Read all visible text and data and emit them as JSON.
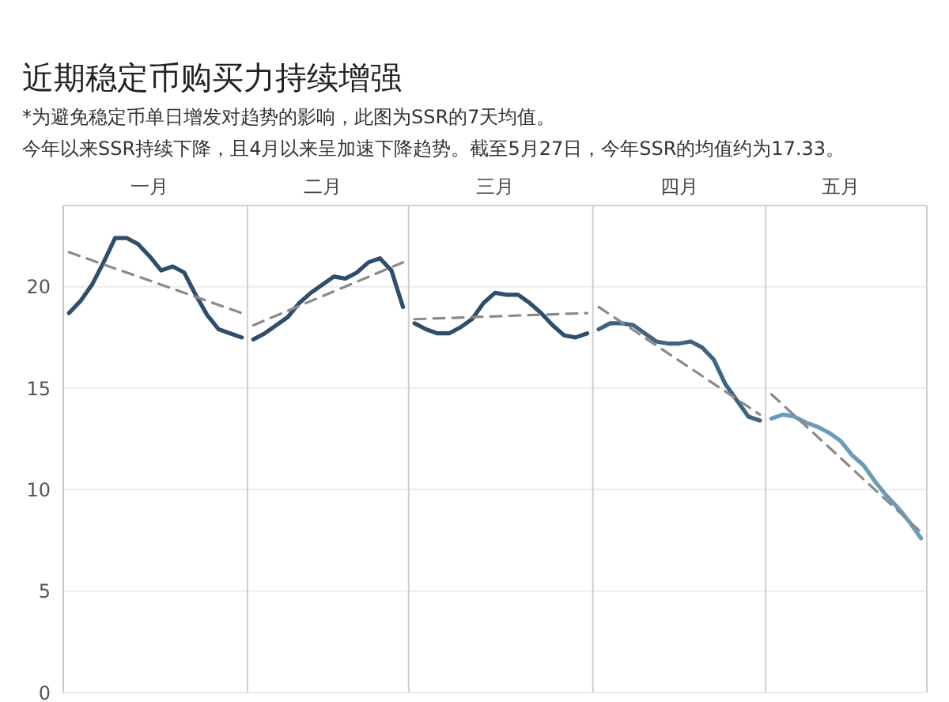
{
  "chart_data": {
    "type": "line",
    "title": "近期稳定币购买力持续增强",
    "subtitle": "*为避免稳定币单日增发对趋势的影响，此图为SSR的7天均值。",
    "annotations": [
      "今年以来SSR持续下降，且4月以来呈加速下降趋势。截至5月27日，今年SSR的均值约为17.33。"
    ],
    "ylim": [
      0,
      24
    ],
    "yticks": [
      0,
      5,
      10,
      15,
      20
    ],
    "grid": "y",
    "line_style": "solid",
    "categories": [
      null,
      null,
      null,
      null,
      null,
      null,
      null,
      "一月",
      null,
      null,
      null,
      null,
      null,
      null,
      null,
      null,
      null,
      null,
      null,
      null,
      null,
      null,
      "二月",
      null,
      null,
      null,
      null,
      null,
      null,
      null,
      null,
      null,
      null,
      null,
      null,
      null,
      null,
      "三月",
      null,
      null,
      null,
      null,
      null,
      null,
      null,
      null,
      null,
      null,
      null,
      null,
      null,
      null,
      null,
      "四月",
      null,
      null,
      null,
      null,
      null,
      null,
      null,
      null,
      null,
      null,
      null,
      null,
      null,
      "五月",
      null,
      null,
      null,
      null,
      null,
      null,
      null
    ],
    "series": [
      {
        "color": "#2f4e6b",
        "values": [
          18.7,
          19.3,
          20.1,
          21.2,
          22.4,
          22.4,
          22.1,
          21.5,
          20.8,
          21.0,
          20.7,
          19.6,
          18.6,
          17.9,
          17.7,
          17.5,
          null,
          null,
          null,
          null,
          null,
          null,
          null,
          null,
          null,
          null,
          null,
          null,
          null,
          null,
          null,
          null,
          null,
          null,
          null,
          null,
          null,
          null,
          null,
          null,
          null,
          null,
          null,
          null,
          null,
          null,
          null,
          null,
          null,
          null,
          null,
          null,
          null,
          null,
          null,
          null,
          null,
          null,
          null,
          null,
          null,
          null,
          null,
          null,
          null,
          null,
          null,
          null,
          null,
          null,
          null,
          null,
          null,
          null,
          null
        ]
      },
      {
        "color": "#2f4e6b",
        "values": [
          null,
          null,
          null,
          null,
          null,
          null,
          null,
          null,
          null,
          null,
          null,
          null,
          null,
          null,
          null,
          null,
          17.4,
          17.7,
          18.1,
          18.5,
          19.2,
          19.7,
          20.1,
          20.5,
          20.4,
          20.7,
          21.2,
          21.4,
          20.8,
          19.0,
          null,
          null,
          null,
          null,
          null,
          null,
          null,
          null,
          null,
          null,
          null,
          null,
          null,
          null,
          null,
          null,
          null,
          null,
          null,
          null,
          null,
          null,
          null,
          null,
          null,
          null,
          null,
          null,
          null,
          null,
          null,
          null,
          null,
          null,
          null,
          null,
          null,
          null,
          null,
          null,
          null,
          null,
          null,
          null,
          null
        ]
      },
      {
        "color": "#2f4e6b",
        "values": [
          null,
          null,
          null,
          null,
          null,
          null,
          null,
          null,
          null,
          null,
          null,
          null,
          null,
          null,
          null,
          null,
          null,
          null,
          null,
          null,
          null,
          null,
          null,
          null,
          null,
          null,
          null,
          null,
          null,
          null,
          18.2,
          17.9,
          17.7,
          17.7,
          18.0,
          18.4,
          19.2,
          19.7,
          19.6,
          19.6,
          19.2,
          18.7,
          18.1,
          17.6,
          17.5,
          17.7,
          null,
          null,
          null,
          null,
          null,
          null,
          null,
          null,
          null,
          null,
          null,
          null,
          null,
          null,
          null,
          null,
          null,
          null,
          null,
          null,
          null,
          null,
          null,
          null,
          null,
          null,
          null,
          null,
          null
        ]
      },
      {
        "color": "#3d6583",
        "values": [
          null,
          null,
          null,
          null,
          null,
          null,
          null,
          null,
          null,
          null,
          null,
          null,
          null,
          null,
          null,
          null,
          null,
          null,
          null,
          null,
          null,
          null,
          null,
          null,
          null,
          null,
          null,
          null,
          null,
          null,
          null,
          null,
          null,
          null,
          null,
          null,
          null,
          null,
          null,
          null,
          null,
          null,
          null,
          null,
          null,
          null,
          17.9,
          18.2,
          18.2,
          18.1,
          17.7,
          17.3,
          17.2,
          17.2,
          17.3,
          17.0,
          16.4,
          15.2,
          14.4,
          13.6,
          13.4,
          null,
          null,
          null,
          null,
          null,
          null,
          null,
          null,
          null,
          null,
          null,
          null,
          null,
          null
        ]
      },
      {
        "color": "#6b9bb8",
        "values": [
          null,
          null,
          null,
          null,
          null,
          null,
          null,
          null,
          null,
          null,
          null,
          null,
          null,
          null,
          null,
          null,
          null,
          null,
          null,
          null,
          null,
          null,
          null,
          null,
          null,
          null,
          null,
          null,
          null,
          null,
          null,
          null,
          null,
          null,
          null,
          null,
          null,
          null,
          null,
          null,
          null,
          null,
          null,
          null,
          null,
          null,
          null,
          null,
          null,
          null,
          null,
          null,
          null,
          null,
          null,
          null,
          null,
          null,
          null,
          null,
          null,
          13.5,
          13.7,
          13.6,
          13.3,
          13.1,
          12.8,
          12.4,
          11.7,
          11.2,
          10.4,
          9.7,
          9.1,
          8.4,
          7.6
        ]
      },
      {
        "color": "#8a8a8a",
        "line_style": "dashed",
        "values": [
          21.7,
          null,
          null,
          null,
          null,
          null,
          null,
          null,
          null,
          null,
          null,
          null,
          null,
          null,
          null,
          18.7,
          null,
          null,
          null,
          null,
          null,
          null,
          null,
          null,
          null,
          null,
          null,
          null,
          null,
          null,
          null,
          null,
          null,
          null,
          null,
          null,
          null,
          null,
          null,
          null,
          null,
          null,
          null,
          null,
          null,
          null,
          null,
          null,
          null,
          null,
          null,
          null,
          null,
          null,
          null,
          null,
          null,
          null,
          null,
          null,
          null,
          null,
          null,
          null,
          null,
          null,
          null,
          null,
          null,
          null,
          null,
          null,
          null,
          null,
          null
        ]
      },
      {
        "color": "#8a8a8a",
        "line_style": "dashed",
        "values": [
          null,
          null,
          null,
          null,
          null,
          null,
          null,
          null,
          null,
          null,
          null,
          null,
          null,
          null,
          null,
          null,
          18.1,
          null,
          null,
          null,
          null,
          null,
          null,
          null,
          null,
          null,
          null,
          null,
          null,
          21.2,
          null,
          null,
          null,
          null,
          null,
          null,
          null,
          null,
          null,
          null,
          null,
          null,
          null,
          null,
          null,
          null,
          null,
          null,
          null,
          null,
          null,
          null,
          null,
          null,
          null,
          null,
          null,
          null,
          null,
          null,
          null,
          null,
          null,
          null,
          null,
          null,
          null,
          null,
          null,
          null,
          null,
          null,
          null,
          null,
          null
        ]
      },
      {
        "color": "#8a8a8a",
        "line_style": "dashed",
        "values": [
          null,
          null,
          null,
          null,
          null,
          null,
          null,
          null,
          null,
          null,
          null,
          null,
          null,
          null,
          null,
          null,
          null,
          null,
          null,
          null,
          null,
          null,
          null,
          null,
          null,
          null,
          null,
          null,
          null,
          null,
          18.4,
          null,
          null,
          null,
          null,
          null,
          null,
          null,
          null,
          null,
          null,
          null,
          null,
          null,
          null,
          18.7,
          null,
          null,
          null,
          null,
          null,
          null,
          null,
          null,
          null,
          null,
          null,
          null,
          null,
          null,
          null,
          null,
          null,
          null,
          null,
          null,
          null,
          null,
          null,
          null,
          null,
          null,
          null,
          null,
          null
        ]
      },
      {
        "color": "#8a8a8a",
        "line_style": "dashed",
        "values": [
          null,
          null,
          null,
          null,
          null,
          null,
          null,
          null,
          null,
          null,
          null,
          null,
          null,
          null,
          null,
          null,
          null,
          null,
          null,
          null,
          null,
          null,
          null,
          null,
          null,
          null,
          null,
          null,
          null,
          null,
          null,
          null,
          null,
          null,
          null,
          null,
          null,
          null,
          null,
          null,
          null,
          null,
          null,
          null,
          null,
          null,
          19.0,
          null,
          null,
          null,
          null,
          null,
          null,
          null,
          null,
          null,
          null,
          null,
          null,
          null,
          13.7,
          null,
          null,
          null,
          null,
          null,
          null,
          null,
          null,
          null,
          null,
          null,
          null,
          null,
          null
        ]
      },
      {
        "color": "#8a8a8a",
        "line_style": "dashed",
        "values": [
          null,
          null,
          null,
          null,
          null,
          null,
          null,
          null,
          null,
          null,
          null,
          null,
          null,
          null,
          null,
          null,
          null,
          null,
          null,
          null,
          null,
          null,
          null,
          null,
          null,
          null,
          null,
          null,
          null,
          null,
          null,
          null,
          null,
          null,
          null,
          null,
          null,
          null,
          null,
          null,
          null,
          null,
          null,
          null,
          null,
          null,
          null,
          null,
          null,
          null,
          null,
          null,
          null,
          null,
          null,
          null,
          null,
          null,
          null,
          null,
          null,
          14.7,
          null,
          null,
          null,
          null,
          null,
          null,
          null,
          null,
          null,
          null,
          null,
          null,
          7.9
        ]
      }
    ]
  }
}
